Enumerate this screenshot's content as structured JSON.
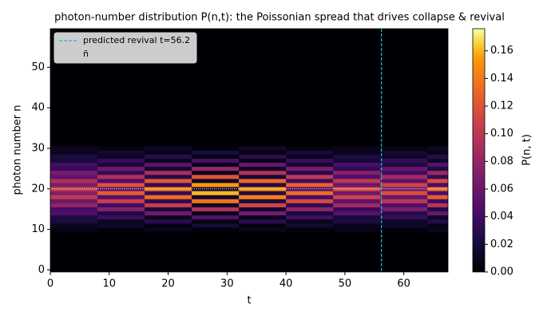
{
  "chart_data": {
    "type": "heatmap",
    "title": "photon-number distribution P(n,t): the Poissonian spread that drives collapse & revival",
    "x_label": "t",
    "y_label": "photon number n",
    "colorbar_label": "P(n, t)",
    "xlim": [
      0,
      67.5
    ],
    "ylim": [
      -0.5,
      59.5
    ],
    "xticks": [
      0,
      10,
      20,
      30,
      40,
      50,
      60
    ],
    "yticks": [
      0,
      10,
      20,
      30,
      40,
      50
    ],
    "clim": [
      0,
      0.176
    ],
    "cticks": [
      {
        "value": 0,
        "label": "0.00"
      },
      {
        "value": 0.02,
        "label": "0.02"
      },
      {
        "value": 0.04,
        "label": "0.04"
      },
      {
        "value": 0.06,
        "label": "0.06"
      },
      {
        "value": 0.08,
        "label": "0.08"
      },
      {
        "value": 0.1,
        "label": "0.10"
      },
      {
        "value": 0.12,
        "label": "0.12"
      },
      {
        "value": 0.14,
        "label": "0.14"
      },
      {
        "value": 0.16,
        "label": "0.16"
      }
    ],
    "colormap": "inferno",
    "x_edges": [
      0,
      8,
      16,
      24,
      32,
      40,
      48,
      56,
      64,
      67.5
    ],
    "y_edges": [
      9.5,
      10.5,
      11.5,
      12.5,
      13.5,
      14.5,
      15.5,
      16.5,
      17.5,
      18.5,
      19.5,
      20.5,
      21.5,
      22.5,
      23.5,
      24.5,
      25.5,
      26.5,
      27.5,
      28.5,
      29.5,
      30.5
    ],
    "z": [
      [
        0.007,
        0.004,
        0.01,
        0.001,
        0.01,
        0.003,
        0.008,
        0.004,
        0.009
      ],
      [
        0.009,
        0.015,
        0.004,
        0.02,
        0.003,
        0.017,
        0.008,
        0.014,
        0.006
      ],
      [
        0.022,
        0.011,
        0.029,
        0.004,
        0.031,
        0.009,
        0.023,
        0.013,
        0.027
      ],
      [
        0.022,
        0.038,
        0.011,
        0.049,
        0.008,
        0.041,
        0.019,
        0.035,
        0.014
      ],
      [
        0.047,
        0.023,
        0.062,
        0.008,
        0.066,
        0.02,
        0.051,
        0.027,
        0.059
      ],
      [
        0.042,
        0.073,
        0.021,
        0.094,
        0.016,
        0.078,
        0.036,
        0.068,
        0.026
      ],
      [
        0.078,
        0.039,
        0.104,
        0.013,
        0.111,
        0.033,
        0.085,
        0.046,
        0.098
      ],
      [
        0.061,
        0.106,
        0.03,
        0.137,
        0.023,
        0.114,
        0.053,
        0.099,
        0.038
      ],
      [
        0.101,
        0.05,
        0.134,
        0.017,
        0.143,
        0.042,
        0.109,
        0.059,
        0.126
      ],
      [
        0.071,
        0.125,
        0.036,
        0.16,
        0.027,
        0.134,
        0.062,
        0.116,
        0.045
      ],
      [
        0.107,
        0.053,
        0.142,
        0.018,
        0.151,
        0.045,
        0.116,
        0.062,
        0.134
      ],
      [
        0.068,
        0.119,
        0.034,
        0.153,
        0.026,
        0.128,
        0.06,
        0.111,
        0.043
      ],
      [
        0.092,
        0.046,
        0.123,
        0.015,
        0.131,
        0.039,
        0.1,
        0.054,
        0.116
      ],
      [
        0.054,
        0.094,
        0.027,
        0.121,
        0.02,
        0.101,
        0.047,
        0.087,
        0.034
      ],
      [
        0.067,
        0.034,
        0.09,
        0.011,
        0.095,
        0.028,
        0.073,
        0.039,
        0.084
      ],
      [
        0.036,
        0.063,
        0.018,
        0.081,
        0.014,
        0.068,
        0.032,
        0.059,
        0.023
      ],
      [
        0.041,
        0.02,
        0.054,
        0.007,
        0.058,
        0.017,
        0.044,
        0.024,
        0.051
      ],
      [
        0.02,
        0.035,
        0.01,
        0.045,
        0.008,
        0.038,
        0.018,
        0.033,
        0.013
      ],
      [
        0.022,
        0.011,
        0.029,
        0.004,
        0.031,
        0.009,
        0.023,
        0.013,
        0.027
      ],
      [
        0.01,
        0.018,
        0.005,
        0.023,
        0.004,
        0.02,
        0.009,
        0.017,
        0.007
      ],
      [
        0.01,
        0.005,
        0.013,
        0.002,
        0.014,
        0.004,
        0.01,
        0.006,
        0.012
      ]
    ],
    "revival": {
      "t": 56.2,
      "label": "predicted revival t=56.2",
      "color": "#17becf"
    },
    "mean": {
      "n": 20,
      "label": "n̄",
      "color": "#ffffff"
    },
    "legend_loc": "upper left"
  }
}
